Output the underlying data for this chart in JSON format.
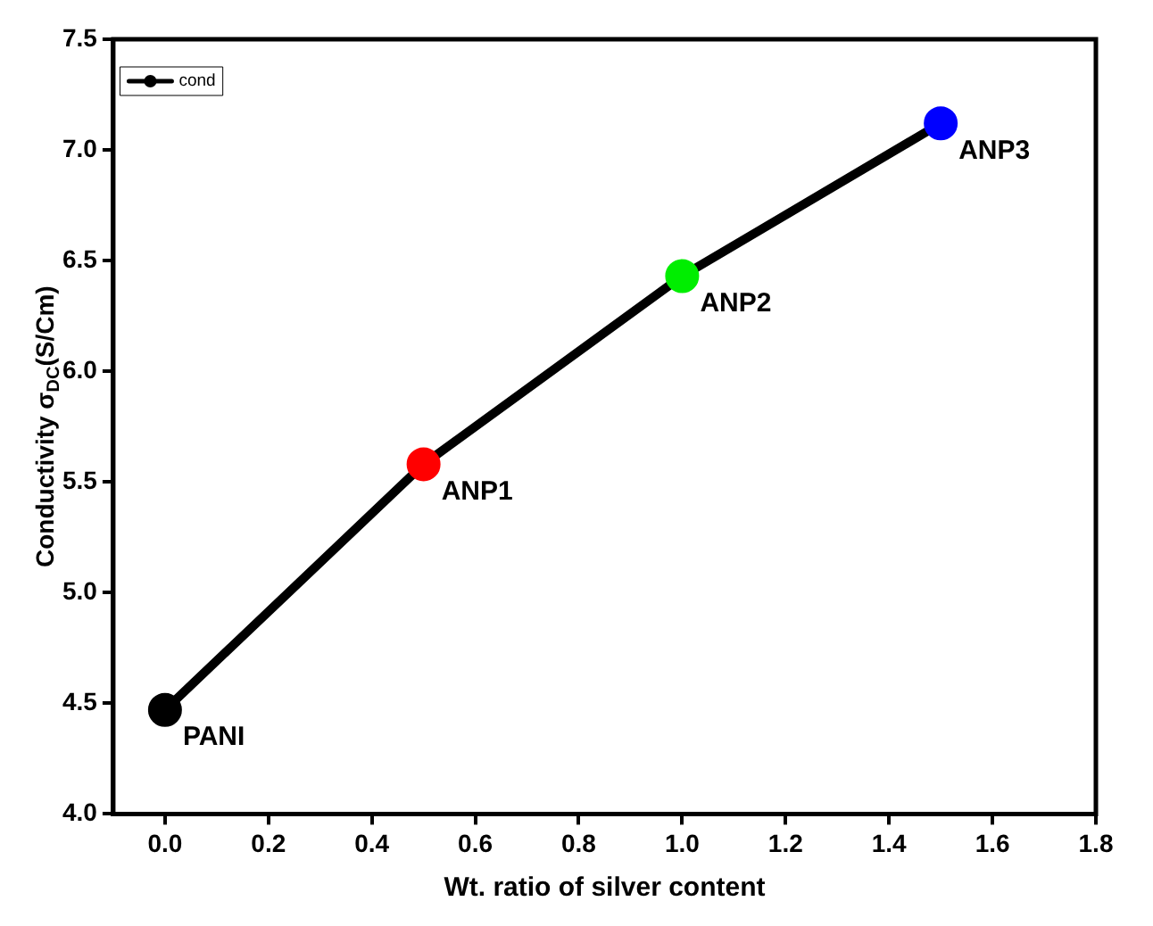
{
  "chart_data": {
    "type": "line",
    "xlabel": "Wt. ratio of silver content",
    "ylabel": "Conductivity σ$_{DC}$(S/Cm)",
    "x": [
      0,
      0.5,
      1.0,
      1.5
    ],
    "series": [
      {
        "name": "cond",
        "color": "#000000",
        "colors": [
          "#000000",
          "#ff0000",
          "#00ee00",
          "#0000ff"
        ],
        "values": [
          4.47,
          5.58,
          6.43,
          7.12
        ]
      }
    ],
    "xlim": [
      -0.1,
      1.8
    ],
    "xticks": [
      {
        "value": 0,
        "label": "0.0"
      },
      0.2,
      0.4,
      0.6,
      0.8,
      {
        "value": 1,
        "label": "1.0"
      },
      1.2,
      1.4,
      1.6,
      1.8
    ],
    "ylim": [
      4.0,
      7.5
    ],
    "yticks": [
      {
        "value": 4,
        "label": "4.0"
      },
      4.5,
      {
        "value": 5,
        "label": "5.0"
      },
      5.5,
      {
        "value": 6,
        "label": "6.0"
      },
      6.5,
      {
        "value": 7,
        "label": "7.0"
      },
      7.5
    ],
    "annotations": [
      {
        "text": "PANI",
        "x": 0,
        "y": 4.47
      },
      {
        "text": "ANP1",
        "x": 0.5,
        "y": 5.58
      },
      {
        "text": "ANP2",
        "x": 1.0,
        "y": 6.43
      },
      {
        "text": "ANP3",
        "x": 1.5,
        "y": 7.12
      }
    ],
    "legend": "top left",
    "marker": "circle",
    "line_style": "solid",
    "grid": false
  }
}
